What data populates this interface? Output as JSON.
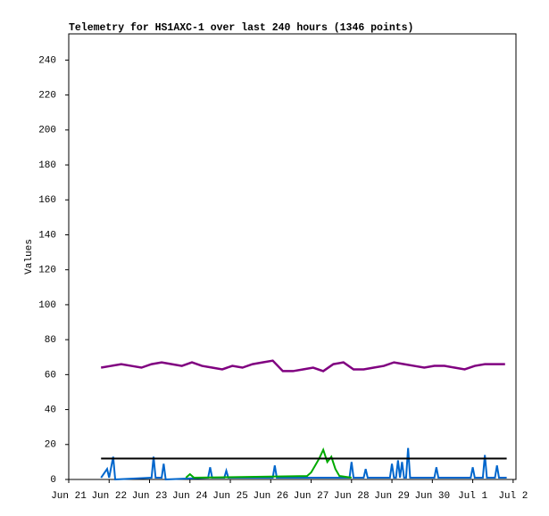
{
  "chart_data": {
    "type": "line",
    "title": "Telemetry for HS1AXC-1 over last 240 hours (1346 points)",
    "y_label": "Values",
    "xlim": [
      0,
      11.07
    ],
    "xticks": [
      {
        "value": 0,
        "label": "Jun 21"
      },
      {
        "value": 1,
        "label": "Jun 22"
      },
      {
        "value": 2,
        "label": "Jun 23"
      },
      {
        "value": 3,
        "label": "Jun 24"
      },
      {
        "value": 4,
        "label": "Jun 25"
      },
      {
        "value": 5,
        "label": "Jun 26"
      },
      {
        "value": 6,
        "label": "Jun 27"
      },
      {
        "value": 7,
        "label": "Jun 28"
      },
      {
        "value": 8,
        "label": "Jun 29"
      },
      {
        "value": 9,
        "label": "Jun 30"
      },
      {
        "value": 10,
        "label": "Jul 1"
      },
      {
        "value": 11,
        "label": "Jul 2"
      }
    ],
    "ylim": [
      0,
      255
    ],
    "yticks": [
      0,
      20,
      40,
      60,
      80,
      100,
      120,
      140,
      160,
      180,
      200,
      220,
      240
    ],
    "grid": false,
    "series": [
      {
        "color": "#800080",
        "x": [
          0.8,
          1.05,
          1.3,
          1.55,
          1.8,
          2.05,
          2.3,
          2.55,
          2.8,
          3.05,
          3.3,
          3.55,
          3.8,
          4.05,
          4.3,
          4.55,
          4.8,
          5.05,
          5.3,
          5.55,
          5.8,
          6.05,
          6.3,
          6.55,
          6.8,
          7.05,
          7.3,
          7.55,
          7.8,
          8.05,
          8.3,
          8.55,
          8.8,
          9.05,
          9.3,
          9.55,
          9.8,
          10.05,
          10.3,
          10.55,
          10.8
        ],
        "values": [
          64,
          65,
          66,
          65,
          64,
          66,
          67,
          66,
          65,
          67,
          65,
          64,
          63,
          65,
          64,
          66,
          67,
          68,
          62,
          62,
          63,
          64,
          62,
          66,
          67,
          63,
          63,
          64,
          65,
          67,
          66,
          65,
          64,
          65,
          65,
          64,
          63,
          65,
          66,
          66,
          66
        ]
      },
      {
        "color": "#0066cc",
        "x": [
          0.8,
          0.95,
          1.0,
          1.1,
          1.15,
          2.05,
          2.1,
          2.15,
          2.3,
          2.35,
          2.4,
          3.45,
          3.5,
          3.55,
          3.85,
          3.9,
          3.95,
          5.05,
          5.1,
          5.15,
          6.95,
          7.0,
          7.05,
          7.3,
          7.35,
          7.4,
          7.95,
          8.0,
          8.05,
          8.1,
          8.15,
          8.2,
          8.25,
          8.3,
          8.35,
          8.4,
          8.45,
          9.05,
          9.1,
          9.15,
          9.95,
          10.0,
          10.05,
          10.25,
          10.3,
          10.35,
          10.55,
          10.6,
          10.65,
          10.84
        ],
        "values": [
          1,
          6,
          1,
          13,
          0,
          1,
          13,
          1,
          1,
          9,
          0,
          1,
          7,
          1,
          1,
          5,
          1,
          1,
          8,
          1,
          1,
          10,
          1,
          1,
          6,
          1,
          1,
          9,
          1,
          1,
          11,
          1,
          10,
          1,
          1,
          18,
          1,
          1,
          7,
          1,
          1,
          7,
          1,
          1,
          14,
          1,
          1,
          8,
          1,
          1
        ]
      },
      {
        "color": "#00aa00",
        "x": [
          2.9,
          3.0,
          3.1,
          5.9,
          6.0,
          6.1,
          6.2,
          6.3,
          6.4,
          6.5,
          6.6,
          6.7,
          7.0
        ],
        "values": [
          1,
          3,
          1,
          2,
          4,
          8,
          12,
          17,
          10,
          13,
          6,
          2,
          1
        ]
      },
      {
        "color": "#000000",
        "x": [
          0.8,
          10.84
        ],
        "values": [
          12,
          12
        ]
      }
    ]
  }
}
